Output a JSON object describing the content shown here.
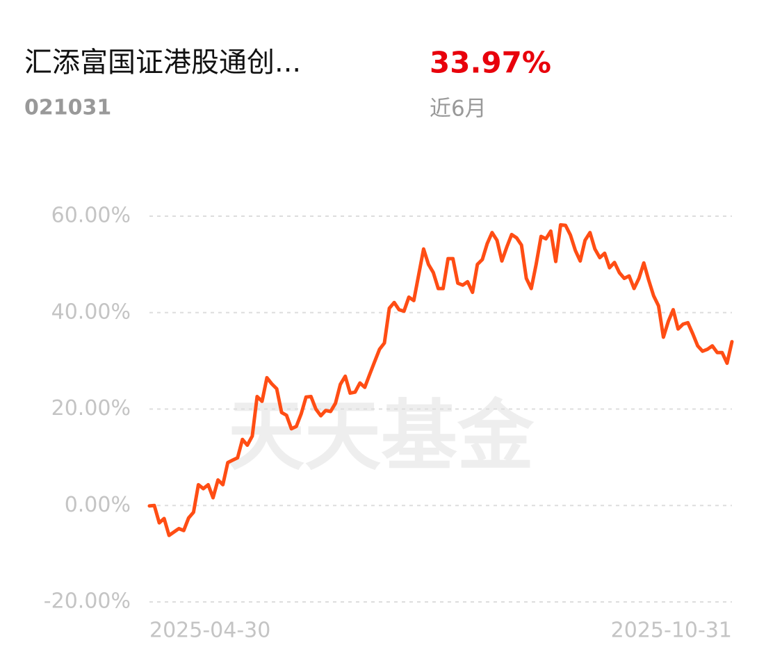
{
  "header": {
    "title": "汇添富国证港股通创...",
    "code": "021031",
    "return": "33.97%",
    "period": "近6月"
  },
  "chart_data": {
    "type": "line",
    "watermark": "天天基金",
    "categories": [
      "2025-04-30",
      null,
      null,
      null,
      null,
      null,
      null,
      null,
      null,
      null,
      null,
      null,
      null,
      null,
      null,
      null,
      null,
      null,
      null,
      null,
      null,
      null,
      null,
      null,
      null,
      null,
      null,
      null,
      null,
      null,
      null,
      null,
      null,
      null,
      null,
      null,
      null,
      null,
      null,
      null,
      null,
      null,
      null,
      null,
      null,
      null,
      null,
      null,
      null,
      null,
      null,
      null,
      null,
      null,
      null,
      null,
      null,
      null,
      null,
      null,
      null,
      null,
      null,
      null,
      null,
      null,
      null,
      null,
      null,
      null,
      null,
      null,
      null,
      null,
      null,
      null,
      null,
      null,
      null,
      null,
      null,
      null,
      null,
      null,
      null,
      null,
      null,
      null,
      null,
      null,
      null,
      null,
      null,
      null,
      null,
      null,
      null,
      null,
      null,
      null,
      null,
      null,
      null,
      null,
      null,
      null,
      null,
      null,
      null,
      null,
      null,
      null,
      null,
      null,
      null,
      null,
      null,
      null,
      null,
      "2025-10-31"
    ],
    "values": [
      -0.1,
      0,
      -3.6,
      -2.7,
      -6.2,
      -5.5,
      -4.8,
      -5.2,
      -2.6,
      -1.4,
      4.3,
      3.5,
      4.3,
      1.6,
      5.3,
      4.3,
      8.9,
      9.4,
      9.9,
      13.7,
      12.5,
      14.4,
      22.6,
      21.6,
      26.5,
      25.2,
      24.2,
      19.3,
      18.7,
      15.9,
      16.4,
      19.0,
      22.5,
      22.6,
      20.0,
      18.6,
      19.7,
      19.5,
      21.2,
      25.1,
      26.8,
      23.3,
      23.5,
      25.4,
      24.5,
      27.2,
      29.8,
      32.4,
      33.7,
      40.9,
      42.1,
      40.6,
      40.3,
      43.2,
      42.5,
      47.8,
      53.2,
      50.0,
      48.3,
      45.0,
      45.0,
      51.2,
      51.2,
      46.1,
      45.7,
      46.4,
      44.2,
      50.0,
      51.0,
      54.3,
      56.6,
      55.0,
      50.7,
      53.6,
      56.2,
      55.5,
      54.0,
      47.1,
      45.0,
      50.0,
      55.8,
      55.3,
      56.9,
      50.6,
      58.2,
      58.1,
      56.1,
      52.9,
      50.7,
      55.0,
      56.6,
      53.2,
      51.4,
      52.3,
      49.3,
      50.4,
      48.3,
      47.1,
      47.6,
      45.0,
      47.1,
      50.3,
      46.7,
      43.5,
      41.4,
      34.9,
      38.2,
      40.6,
      36.6,
      37.6,
      37.9,
      35.6,
      33.1,
      32.0,
      32.4,
      33.1,
      31.7,
      31.7,
      29.5,
      33.97
    ],
    "color": "#ff4d14",
    "ylim": [
      -20,
      60
    ],
    "yticks": [
      {
        "value": 60,
        "label": "60.00%"
      },
      {
        "value": 40,
        "label": "40.00%"
      },
      {
        "value": 20,
        "label": "20.00%"
      },
      {
        "value": 0,
        "label": "0.00%"
      },
      {
        "value": -20,
        "label": "-20.00%"
      }
    ],
    "grid": true
  }
}
